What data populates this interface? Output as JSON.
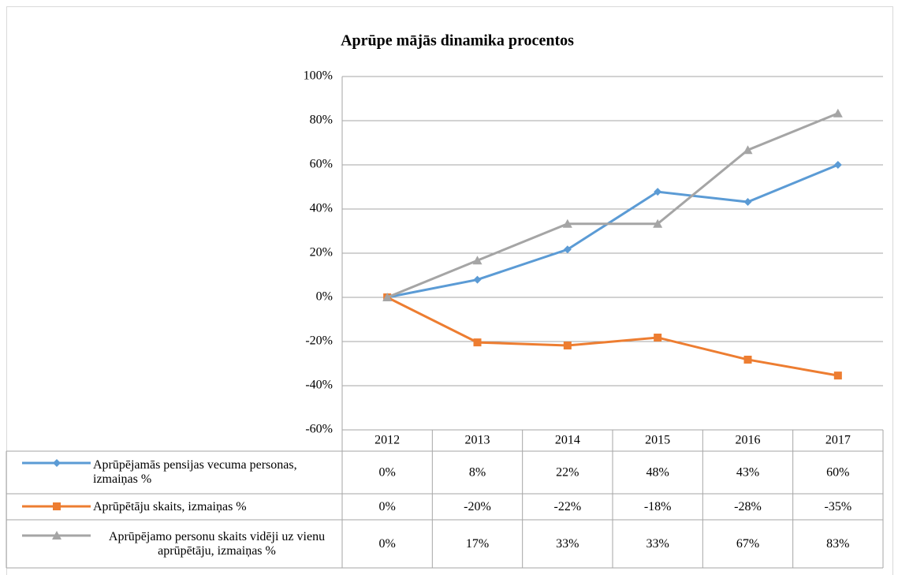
{
  "chart_data": {
    "type": "line",
    "title": "Aprūpe mājās dinamika procentos",
    "categories": [
      "2012",
      "2013",
      "2014",
      "2015",
      "2016",
      "2017"
    ],
    "series": [
      {
        "name": "Aprūpējamās pensijas vecuma personas, izmaiņas %",
        "color": "#5b9bd5",
        "marker": "diamond",
        "values": [
          0,
          8,
          21.7,
          47.8,
          43.2,
          60
        ],
        "value_labels": [
          "0%",
          "8%",
          "22%",
          "48%",
          "43%",
          "60%"
        ]
      },
      {
        "name": "Aprūpētāju skaits, izmaiņas %",
        "color": "#ed7d31",
        "marker": "square",
        "values": [
          0,
          -20.4,
          -21.8,
          -18.2,
          -28.2,
          -35.4
        ],
        "value_labels": [
          "0%",
          "-20%",
          "-22%",
          "-18%",
          "-28%",
          "-35%"
        ]
      },
      {
        "name": "Aprūpējamo personu skaits vidēji uz vienu aprūpētāju, izmaiņas %",
        "color": "#a5a5a5",
        "marker": "triangle",
        "values": [
          0,
          16.7,
          33.3,
          33.3,
          66.7,
          83.3
        ],
        "value_labels": [
          "0%",
          "17%",
          "33%",
          "33%",
          "67%",
          "83%"
        ]
      }
    ],
    "ylim": [
      -60,
      100
    ],
    "yticks": [
      {
        "value": -60,
        "label": "-60%"
      },
      {
        "value": -40,
        "label": "-40%"
      },
      {
        "value": -20,
        "label": "-20%"
      },
      {
        "value": 0,
        "label": "0%"
      },
      {
        "value": 20,
        "label": "20%"
      },
      {
        "value": 40,
        "label": "40%"
      },
      {
        "value": 60,
        "label": "60%"
      },
      {
        "value": 80,
        "label": "80%"
      },
      {
        "value": 100,
        "label": "100%"
      }
    ],
    "grid": true,
    "data_table": true
  }
}
